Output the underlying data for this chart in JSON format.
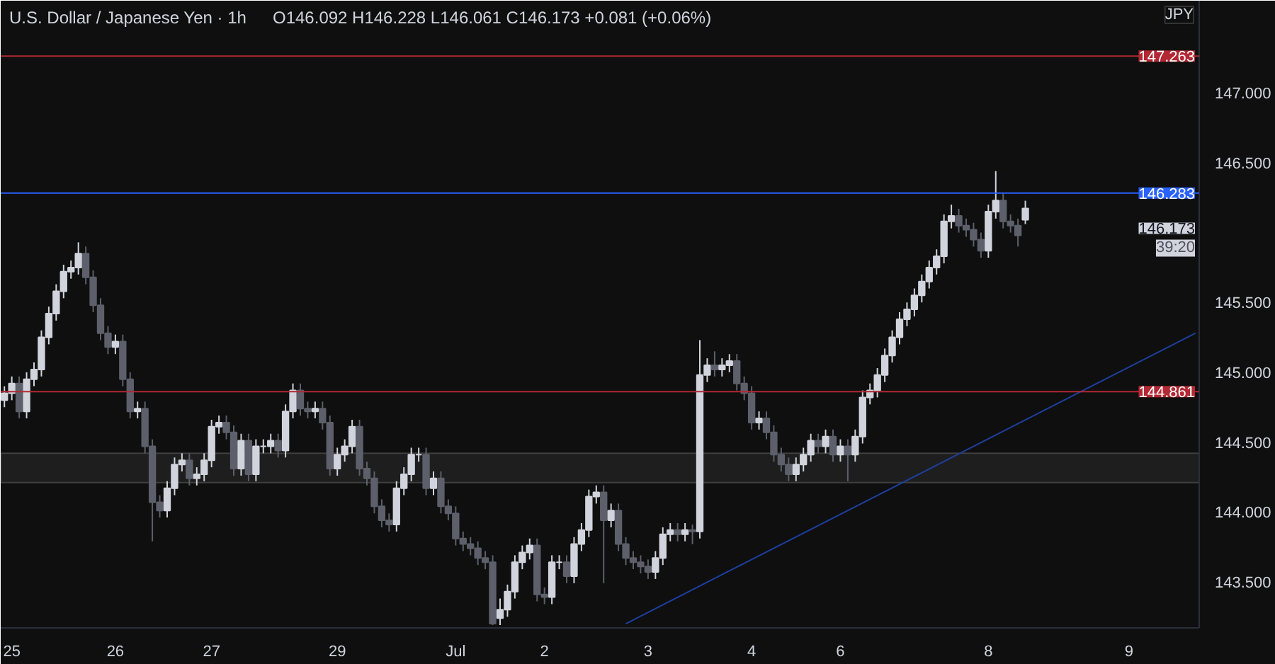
{
  "chart_data": {
    "type": "candlestick",
    "title": "U.S. Dollar / Japanese Yen · 1h",
    "subtitle": "O146.092  H146.228  L146.061  C146.173  +0.081 (+0.06%)",
    "categories": [
      null,
      "25",
      null,
      null,
      null,
      null,
      null,
      null,
      null,
      null,
      null,
      null,
      null,
      null,
      null,
      "26",
      null,
      null,
      null,
      null,
      null,
      null,
      null,
      null,
      null,
      null,
      null,
      null,
      "27",
      null,
      null,
      null,
      null,
      null,
      null,
      null,
      null,
      null,
      null,
      null,
      null,
      null,
      null,
      null,
      null,
      "29",
      null,
      null,
      null,
      null,
      null,
      null,
      null,
      null,
      null,
      null,
      null,
      null,
      null,
      null,
      null,
      "Jul",
      null,
      null,
      null,
      null,
      null,
      null,
      null,
      null,
      null,
      null,
      null,
      "2",
      null,
      null,
      null,
      null,
      null,
      null,
      null,
      null,
      null,
      null,
      null,
      null,
      null,
      "3",
      null,
      null,
      null,
      null,
      null,
      null,
      null,
      null,
      null,
      null,
      null,
      null,
      null,
      "4",
      null,
      null,
      null,
      null,
      null,
      null,
      null,
      null,
      null,
      null,
      null,
      "6",
      null,
      null,
      null,
      null,
      null,
      null,
      null,
      null,
      null,
      null,
      null,
      null,
      null,
      null,
      null,
      null,
      null,
      null,
      null,
      "8",
      null,
      null,
      null,
      null,
      null,
      null,
      null,
      null,
      null,
      null,
      null,
      null,
      null,
      null,
      null,
      null,
      null,
      null,
      "9",
      null,
      null,
      null,
      null,
      null,
      null,
      null,
      null,
      null
    ],
    "ohlc": [
      [
        144.8,
        144.9,
        144.75,
        144.85
      ],
      [
        144.85,
        144.97,
        144.8,
        144.92
      ],
      [
        144.92,
        144.97,
        144.67,
        144.72
      ],
      [
        144.72,
        145.0,
        144.67,
        144.95
      ],
      [
        144.95,
        145.07,
        144.9,
        145.02
      ],
      [
        145.02,
        145.3,
        144.97,
        145.25
      ],
      [
        145.25,
        145.47,
        145.2,
        145.42
      ],
      [
        145.42,
        145.63,
        145.37,
        145.58
      ],
      [
        145.58,
        145.77,
        145.53,
        145.72
      ],
      [
        145.72,
        145.8,
        145.67,
        145.75
      ],
      [
        145.75,
        145.93,
        145.7,
        145.85
      ],
      [
        145.85,
        145.9,
        145.63,
        145.68
      ],
      [
        145.68,
        145.73,
        145.43,
        145.48
      ],
      [
        145.48,
        145.53,
        145.23,
        145.28
      ],
      [
        145.28,
        145.33,
        145.13,
        145.18
      ],
      [
        145.18,
        145.27,
        145.13,
        145.22
      ],
      [
        145.22,
        145.27,
        144.9,
        144.95
      ],
      [
        144.95,
        145.0,
        144.67,
        144.72
      ],
      [
        144.72,
        144.79,
        144.67,
        144.74
      ],
      [
        144.74,
        144.79,
        144.42,
        144.47
      ],
      [
        144.47,
        144.52,
        143.79,
        144.07
      ],
      [
        144.07,
        144.12,
        143.96,
        144.01
      ],
      [
        144.01,
        144.22,
        143.96,
        144.17
      ],
      [
        144.17,
        144.39,
        144.12,
        144.34
      ],
      [
        144.34,
        144.42,
        144.29,
        144.37
      ],
      [
        144.37,
        144.42,
        144.19,
        144.24
      ],
      [
        144.24,
        144.32,
        144.19,
        144.27
      ],
      [
        144.27,
        144.42,
        144.22,
        144.37
      ],
      [
        144.37,
        144.66,
        144.32,
        144.61
      ],
      [
        144.61,
        144.69,
        144.56,
        144.64
      ],
      [
        144.64,
        144.69,
        144.52,
        144.57
      ],
      [
        144.57,
        144.62,
        144.26,
        144.31
      ],
      [
        144.31,
        144.56,
        144.26,
        144.51
      ],
      [
        144.51,
        144.56,
        144.22,
        144.27
      ],
      [
        144.27,
        144.52,
        144.22,
        144.47
      ],
      [
        144.47,
        144.52,
        144.42,
        144.47
      ],
      [
        144.47,
        144.56,
        144.42,
        144.51
      ],
      [
        144.51,
        144.56,
        144.39,
        144.44
      ],
      [
        144.44,
        144.77,
        144.39,
        144.72
      ],
      [
        144.72,
        144.92,
        144.67,
        144.87
      ],
      [
        144.87,
        144.92,
        144.69,
        144.74
      ],
      [
        144.74,
        144.79,
        144.67,
        144.72
      ],
      [
        144.72,
        144.79,
        144.67,
        144.74
      ],
      [
        144.74,
        144.79,
        144.59,
        144.64
      ],
      [
        144.64,
        144.69,
        144.26,
        144.31
      ],
      [
        144.31,
        144.46,
        144.26,
        144.41
      ],
      [
        144.41,
        144.52,
        144.36,
        144.47
      ],
      [
        144.47,
        144.66,
        144.42,
        144.61
      ],
      [
        144.61,
        144.66,
        144.26,
        144.31
      ],
      [
        144.31,
        144.36,
        144.19,
        144.24
      ],
      [
        144.24,
        144.29,
        143.99,
        144.04
      ],
      [
        144.04,
        144.09,
        143.89,
        143.94
      ],
      [
        143.94,
        143.99,
        143.86,
        143.91
      ],
      [
        143.91,
        144.22,
        143.86,
        144.17
      ],
      [
        144.17,
        144.32,
        144.12,
        144.27
      ],
      [
        144.27,
        144.46,
        144.22,
        144.41
      ],
      [
        144.41,
        144.46,
        144.36,
        144.41
      ],
      [
        144.41,
        144.46,
        144.12,
        144.17
      ],
      [
        144.17,
        144.29,
        144.12,
        144.24
      ],
      [
        144.24,
        144.29,
        143.99,
        144.04
      ],
      [
        144.04,
        144.09,
        143.94,
        143.99
      ],
      [
        143.99,
        144.04,
        143.76,
        143.81
      ],
      [
        143.81,
        143.86,
        143.72,
        143.77
      ],
      [
        143.77,
        143.82,
        143.69,
        143.74
      ],
      [
        143.74,
        143.79,
        143.62,
        143.67
      ],
      [
        143.67,
        143.72,
        143.59,
        143.64
      ],
      [
        143.64,
        143.69,
        143.19,
        143.2
      ],
      [
        143.24,
        143.38,
        143.19,
        143.3
      ],
      [
        143.3,
        143.48,
        143.25,
        143.43
      ],
      [
        143.43,
        143.69,
        143.38,
        143.64
      ],
      [
        143.64,
        143.76,
        143.59,
        143.71
      ],
      [
        143.71,
        143.81,
        143.66,
        143.76
      ],
      [
        143.76,
        143.81,
        143.36,
        143.41
      ],
      [
        143.41,
        143.46,
        143.34,
        143.39
      ],
      [
        143.39,
        143.69,
        143.34,
        143.64
      ],
      [
        143.64,
        143.69,
        143.59,
        143.64
      ],
      [
        143.64,
        143.69,
        143.49,
        143.54
      ],
      [
        143.54,
        143.82,
        143.49,
        143.77
      ],
      [
        143.77,
        143.92,
        143.72,
        143.87
      ],
      [
        143.87,
        144.16,
        143.82,
        144.11
      ],
      [
        144.11,
        144.19,
        144.06,
        144.14
      ],
      [
        144.14,
        144.19,
        143.49,
        143.94
      ],
      [
        143.94,
        144.06,
        143.89,
        144.01
      ],
      [
        144.01,
        144.06,
        143.72,
        143.77
      ],
      [
        143.77,
        143.82,
        143.62,
        143.67
      ],
      [
        143.67,
        143.72,
        143.59,
        143.64
      ],
      [
        143.64,
        143.69,
        143.56,
        143.61
      ],
      [
        143.61,
        143.66,
        143.52,
        143.57
      ],
      [
        143.57,
        143.72,
        143.52,
        143.67
      ],
      [
        143.67,
        143.89,
        143.62,
        143.84
      ],
      [
        143.84,
        143.92,
        143.79,
        143.87
      ],
      [
        143.87,
        143.92,
        143.79,
        143.84
      ],
      [
        143.84,
        143.92,
        143.79,
        143.87
      ],
      [
        143.87,
        143.91,
        143.77,
        143.86
      ],
      [
        143.86,
        145.23,
        143.81,
        144.98
      ],
      [
        144.98,
        145.1,
        144.93,
        145.05
      ],
      [
        145.05,
        145.15,
        144.97,
        145.02
      ],
      [
        145.02,
        145.1,
        144.97,
        145.05
      ],
      [
        145.05,
        145.13,
        145.0,
        145.08
      ],
      [
        145.08,
        145.13,
        144.87,
        144.92
      ],
      [
        144.92,
        144.97,
        144.8,
        144.85
      ],
      [
        144.85,
        144.9,
        144.59,
        144.64
      ],
      [
        144.64,
        144.72,
        144.59,
        144.67
      ],
      [
        144.67,
        144.72,
        144.52,
        144.57
      ],
      [
        144.57,
        144.62,
        144.36,
        144.41
      ],
      [
        144.41,
        144.46,
        144.29,
        144.34
      ],
      [
        144.34,
        144.39,
        144.22,
        144.27
      ],
      [
        144.27,
        144.39,
        144.22,
        144.34
      ],
      [
        144.34,
        144.46,
        144.29,
        144.41
      ],
      [
        144.41,
        144.56,
        144.36,
        144.51
      ],
      [
        144.51,
        144.56,
        144.42,
        144.47
      ],
      [
        144.47,
        144.59,
        144.42,
        144.54
      ],
      [
        144.54,
        144.59,
        144.36,
        144.41
      ],
      [
        144.41,
        144.52,
        144.36,
        144.47
      ],
      [
        144.47,
        144.52,
        144.22,
        144.41
      ],
      [
        144.41,
        144.59,
        144.36,
        144.54
      ],
      [
        144.54,
        144.87,
        144.49,
        144.82
      ],
      [
        144.82,
        144.92,
        144.77,
        144.87
      ],
      [
        144.87,
        145.03,
        144.82,
        144.98
      ],
      [
        144.98,
        145.17,
        144.93,
        145.12
      ],
      [
        145.12,
        145.3,
        145.07,
        145.25
      ],
      [
        145.25,
        145.43,
        145.2,
        145.38
      ],
      [
        145.38,
        145.5,
        145.33,
        145.45
      ],
      [
        145.45,
        145.6,
        145.4,
        145.55
      ],
      [
        145.55,
        145.7,
        145.5,
        145.65
      ],
      [
        145.65,
        145.8,
        145.6,
        145.75
      ],
      [
        145.75,
        145.88,
        145.7,
        145.83
      ],
      [
        145.83,
        146.13,
        145.78,
        146.08
      ],
      [
        146.08,
        146.2,
        146.03,
        146.12
      ],
      [
        146.12,
        146.17,
        146.0,
        146.05
      ],
      [
        146.05,
        146.1,
        145.97,
        146.02
      ],
      [
        146.02,
        146.07,
        145.9,
        145.95
      ],
      [
        145.95,
        146.0,
        145.82,
        145.87
      ],
      [
        145.87,
        146.2,
        145.82,
        146.15
      ],
      [
        146.15,
        146.44,
        146.1,
        146.23
      ],
      [
        146.23,
        146.28,
        146.03,
        146.08
      ],
      [
        146.08,
        146.13,
        146.0,
        146.05
      ],
      [
        146.05,
        146.1,
        145.9,
        145.98
      ],
      [
        146.092,
        146.228,
        146.061,
        146.173
      ],
      null,
      null,
      null,
      null,
      null,
      null,
      null,
      null,
      null,
      null,
      null,
      null,
      null,
      null,
      null,
      null,
      null,
      null,
      null,
      null,
      null,
      null,
      null
    ],
    "series": [
      {
        "type": "line",
        "color": "#1e3f9e",
        "values": [
          null,
          null,
          null,
          null,
          null,
          null,
          null,
          null,
          null,
          null,
          null,
          null,
          null,
          null,
          null,
          null,
          null,
          null,
          null,
          null,
          null,
          null,
          null,
          null,
          null,
          null,
          null,
          null,
          null,
          null,
          null,
          null,
          null,
          null,
          null,
          null,
          null,
          null,
          null,
          null,
          null,
          null,
          null,
          null,
          null,
          null,
          null,
          null,
          null,
          null,
          null,
          null,
          null,
          null,
          null,
          null,
          null,
          null,
          null,
          null,
          null,
          null,
          null,
          null,
          null,
          null,
          null,
          null,
          null,
          null,
          null,
          null,
          null,
          null,
          null,
          null,
          null,
          null,
          null,
          null,
          null,
          null,
          null,
          null,
          143.2,
          null,
          null,
          null,
          null,
          null,
          null,
          null,
          null,
          null,
          null,
          null,
          null,
          null,
          null,
          null,
          null,
          null,
          null,
          null,
          null,
          null,
          null,
          null,
          null,
          null,
          null,
          null,
          null,
          null,
          null,
          null,
          null,
          null,
          null,
          null,
          null,
          null,
          null,
          null,
          null,
          null,
          null,
          null,
          null,
          null,
          null,
          null,
          null,
          null,
          null,
          null,
          null,
          null,
          null,
          null,
          null,
          null,
          null,
          null,
          null,
          null,
          null,
          null,
          null,
          null,
          null,
          null,
          null,
          null,
          null,
          null,
          null,
          null,
          null,
          null,
          null,
          145.28
        ]
      }
    ],
    "ylim": [
      143.17,
      147.66
    ],
    "yticks": [
      {
        "value": 143.5,
        "label": "143.500"
      },
      {
        "value": 144,
        "label": "144.000"
      },
      {
        "value": 144.5,
        "label": "144.500"
      },
      {
        "value": 145,
        "label": "145.000"
      },
      {
        "value": 145.5,
        "label": "145.500"
      },
      {
        "value": 146.5,
        "label": "146.500"
      },
      {
        "value": 147,
        "label": "147.000"
      }
    ],
    "ref_lines": [
      {
        "axis": "y",
        "value": 147.263,
        "label": "147.263",
        "color": "#b22833"
      },
      {
        "axis": "y",
        "value": 146.283,
        "label": "146.283",
        "color": "#2962ff"
      },
      {
        "axis": "y",
        "value": 144.861,
        "label": "144.861",
        "color": "#b22833"
      }
    ],
    "bands": [
      {
        "axis": "y",
        "from": 144.21,
        "to": 144.42,
        "color": "#9a9a9a"
      }
    ],
    "annotations": [
      "146.173",
      "39:20",
      "JPY"
    ],
    "grid": false
  }
}
